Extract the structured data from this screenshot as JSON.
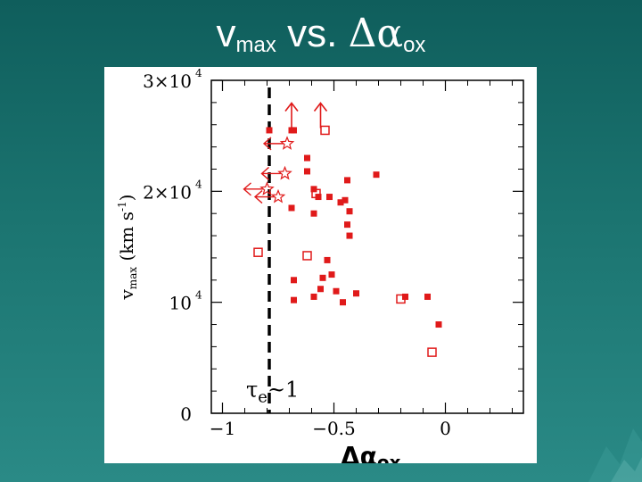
{
  "slide": {
    "title_main": "v",
    "title_sub": "max",
    "title_mid": " vs. ",
    "title_symbol": "Δα",
    "title_symbol_sub": "ox"
  },
  "chart_data": {
    "type": "scatter",
    "xlabel": "Δα_ox",
    "xlabel_main": "Δα",
    "xlabel_sub": "ox",
    "ylabel": "v_max (km s^-1)",
    "ylabel_parts": {
      "v": "v",
      "vsub": "max",
      "units": " (km s",
      "exp": "-1",
      "close": ")"
    },
    "xlim": [
      -1.05,
      0.35
    ],
    "ylim": [
      0,
      30000
    ],
    "x_ticks": [
      {
        "value": -1,
        "label": "−1"
      },
      {
        "value": -0.5,
        "label": "−0.5"
      },
      {
        "value": 0,
        "label": "0"
      }
    ],
    "y_ticks": [
      {
        "value": 0,
        "label": "0",
        "exp": ""
      },
      {
        "value": 10000,
        "label": "10",
        "exp": "4"
      },
      {
        "value": 20000,
        "label": "2×10",
        "exp": "4"
      },
      {
        "value": 30000,
        "label": "3×10",
        "exp": "4"
      }
    ],
    "vline": {
      "x": -0.79,
      "style": "dashed",
      "label_main": "τ",
      "label_sub": "e",
      "label_rest": "~1"
    },
    "marker_color": "#e01a1a",
    "series": [
      {
        "marker": "filled-square",
        "points": [
          [
            -0.79,
            25500
          ],
          [
            -0.69,
            25500
          ],
          [
            -0.68,
            25500
          ],
          [
            -0.62,
            23000
          ],
          [
            -0.62,
            21800
          ],
          [
            -0.59,
            20200
          ],
          [
            -0.57,
            19500
          ],
          [
            -0.52,
            19500
          ],
          [
            -0.47,
            19000
          ],
          [
            -0.44,
            21000
          ],
          [
            -0.45,
            19200
          ],
          [
            -0.43,
            18200
          ],
          [
            -0.44,
            17000
          ],
          [
            -0.43,
            16000
          ],
          [
            -0.31,
            21500
          ],
          [
            -0.69,
            18500
          ],
          [
            -0.59,
            18000
          ],
          [
            -0.68,
            12000
          ],
          [
            -0.55,
            12200
          ],
          [
            -0.53,
            13800
          ],
          [
            -0.56,
            11200
          ],
          [
            -0.68,
            10200
          ],
          [
            -0.59,
            10500
          ],
          [
            -0.51,
            12500
          ],
          [
            -0.49,
            11000
          ],
          [
            -0.46,
            10000
          ],
          [
            -0.4,
            10800
          ],
          [
            -0.18,
            10500
          ],
          [
            -0.08,
            10500
          ],
          [
            -0.03,
            8000
          ]
        ]
      },
      {
        "marker": "open-square",
        "points": [
          [
            -0.54,
            25500
          ],
          [
            -0.58,
            19800
          ],
          [
            -0.84,
            14500
          ],
          [
            -0.62,
            14200
          ],
          [
            -0.2,
            10300
          ],
          [
            -0.06,
            5500
          ]
        ]
      },
      {
        "marker": "star-left-arrow",
        "points": [
          [
            -0.8,
            20200
          ],
          [
            -0.75,
            19500
          ],
          [
            -0.72,
            21600
          ],
          [
            -0.71,
            24300
          ]
        ]
      },
      {
        "marker": "up-arrow",
        "points": [
          [
            -0.69,
            25700
          ],
          [
            -0.56,
            25700
          ]
        ]
      }
    ]
  }
}
